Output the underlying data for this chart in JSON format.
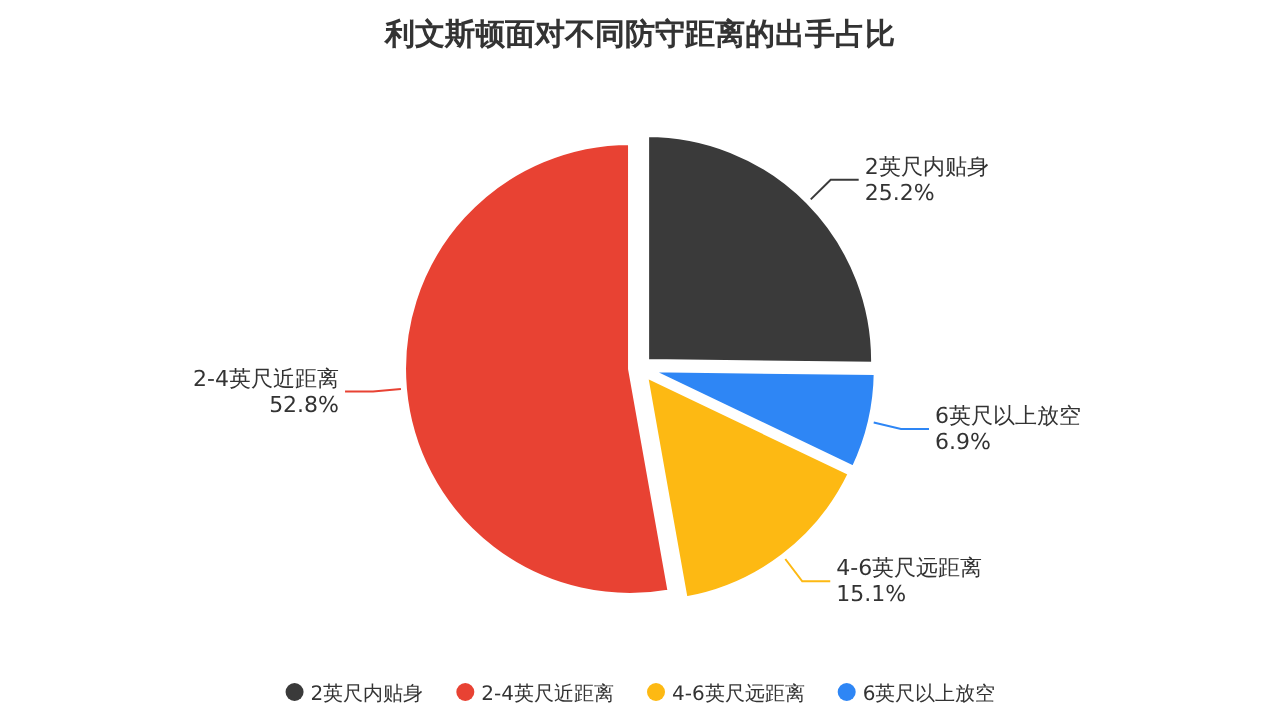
{
  "chart_data": {
    "type": "pie",
    "title": "利文斯顿面对不同防守距离的出手占比",
    "categories": [
      "2英尺内贴身",
      "2-4英尺近距离",
      "4-6英尺远距离",
      "6英尺以上放空"
    ],
    "values": [
      25.2,
      52.8,
      15.1,
      6.9
    ],
    "value_labels": [
      "25.2%",
      "52.8%",
      "15.1%",
      "6.9%"
    ],
    "colors": [
      "#3a3a3a",
      "#e84233",
      "#fdb913",
      "#2e86f5"
    ],
    "legend": "bottom"
  }
}
